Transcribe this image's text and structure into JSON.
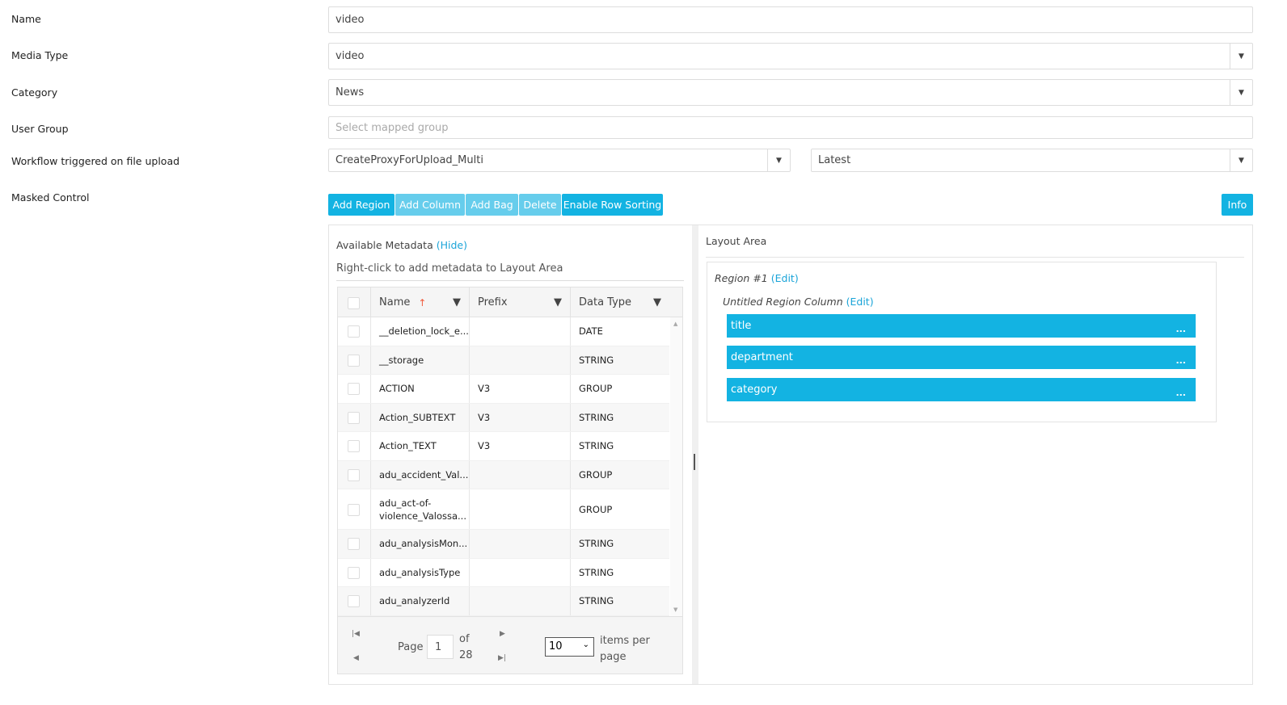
{
  "form": {
    "name": {
      "label": "Name",
      "value": "video"
    },
    "media_type": {
      "label": "Media Type",
      "value": "video"
    },
    "category": {
      "label": "Category",
      "value": "News"
    },
    "user_group": {
      "label": "User Group",
      "placeholder": "Select mapped group"
    },
    "workflow": {
      "label": "Workflow triggered on file upload",
      "value": "CreateProxyForUpload_Multi",
      "version": "Latest"
    },
    "masked_control": {
      "label": "Masked Control"
    }
  },
  "toolbar": {
    "add_region": "Add Region",
    "add_column": "Add Column",
    "add_bag": "Add Bag",
    "delete": "Delete",
    "enable_row_sorting": "Enable Row Sorting",
    "info": "Info"
  },
  "metadata": {
    "title": "Available Metadata",
    "hide": "(Hide)",
    "hint": "Right-click to add metadata to Layout Area",
    "columns": [
      "Name",
      "Prefix",
      "Data Type"
    ],
    "rows": [
      {
        "name": "__deletion_lock_e...",
        "prefix": "",
        "type": "DATE"
      },
      {
        "name": "__storage",
        "prefix": "",
        "type": "STRING"
      },
      {
        "name": "ACTION",
        "prefix": "V3",
        "type": "GROUP"
      },
      {
        "name": "Action_SUBTEXT",
        "prefix": "V3",
        "type": "STRING"
      },
      {
        "name": "Action_TEXT",
        "prefix": "V3",
        "type": "STRING"
      },
      {
        "name": "adu_accident_Val...",
        "prefix": "",
        "type": "GROUP"
      },
      {
        "name": "adu_act-of-violence_Valossa...",
        "prefix": "",
        "type": "GROUP"
      },
      {
        "name": "adu_analysisMon...",
        "prefix": "",
        "type": "STRING"
      },
      {
        "name": "adu_analysisType",
        "prefix": "",
        "type": "STRING"
      },
      {
        "name": "adu_analyzerId",
        "prefix": "",
        "type": "STRING"
      }
    ],
    "pager": {
      "page_label": "Page",
      "page": "1",
      "of_label": "of",
      "total": "28",
      "per_page": "10",
      "items_per_page": "items per page"
    }
  },
  "layout": {
    "title": "Layout Area",
    "region": "Region #1",
    "region_edit": "(Edit)",
    "column": "Untitled Region Column",
    "column_edit": "(Edit)",
    "items": [
      "title",
      "department",
      "category"
    ],
    "more": "..."
  },
  "colors": {
    "accent": "#13b3e2",
    "accent_disabled": "#66cdec",
    "link": "#1aa4d8"
  }
}
